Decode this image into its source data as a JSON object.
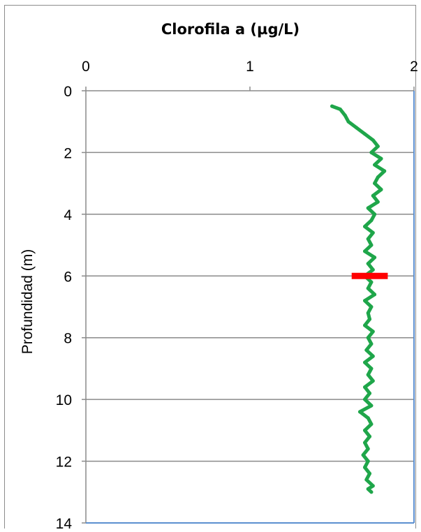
{
  "chart_data": {
    "type": "line",
    "title": "Clorofila a (µg/L)",
    "xlabel": "",
    "ylabel": "Profundidad (m)",
    "xlim": [
      0,
      2
    ],
    "ylim": [
      0,
      14
    ],
    "y_reversed": true,
    "x_axis_position": "top",
    "x_ticks": [
      "0",
      "1",
      "2"
    ],
    "y_ticks": [
      "0",
      "2",
      "4",
      "6",
      "8",
      "10",
      "12",
      "14"
    ],
    "grid": "horizontal",
    "legend": "none",
    "series": [
      {
        "color": "#1fa64a",
        "x": [
          1.5,
          1.55,
          1.58,
          1.6,
          1.65,
          1.7,
          1.75,
          1.78,
          1.74,
          1.8,
          1.76,
          1.82,
          1.78,
          1.76,
          1.8,
          1.75,
          1.78,
          1.72,
          1.76,
          1.74,
          1.7,
          1.75,
          1.72,
          1.74,
          1.7,
          1.76,
          1.72,
          1.75,
          1.7,
          1.74,
          1.72,
          1.76,
          1.7,
          1.74,
          1.72,
          1.73,
          1.7,
          1.75,
          1.72,
          1.74,
          1.71,
          1.75,
          1.7,
          1.74,
          1.72,
          1.75,
          1.7,
          1.73,
          1.7,
          1.74,
          1.67,
          1.72,
          1.74,
          1.7,
          1.73,
          1.7,
          1.72,
          1.69,
          1.72,
          1.7,
          1.73,
          1.71,
          1.75,
          1.72,
          1.74
        ],
        "y": [
          0.5,
          0.6,
          0.8,
          1.0,
          1.2,
          1.4,
          1.6,
          1.8,
          2.0,
          2.2,
          2.4,
          2.6,
          2.8,
          3.0,
          3.2,
          3.4,
          3.6,
          3.8,
          4.0,
          4.2,
          4.4,
          4.6,
          4.8,
          5.0,
          5.2,
          5.4,
          5.6,
          5.8,
          6.0,
          6.2,
          6.4,
          6.6,
          6.8,
          7.0,
          7.2,
          7.4,
          7.6,
          7.8,
          8.0,
          8.2,
          8.4,
          8.6,
          8.8,
          9.0,
          9.2,
          9.4,
          9.6,
          9.8,
          10.0,
          10.2,
          10.4,
          10.6,
          10.8,
          11.0,
          11.2,
          11.4,
          11.6,
          11.8,
          12.0,
          12.2,
          12.4,
          12.6,
          12.8,
          12.9,
          13.0
        ]
      }
    ],
    "marker": {
      "y": 6.0,
      "x_from": 1.62,
      "x_to": 1.84,
      "color": "#ff0000"
    }
  }
}
